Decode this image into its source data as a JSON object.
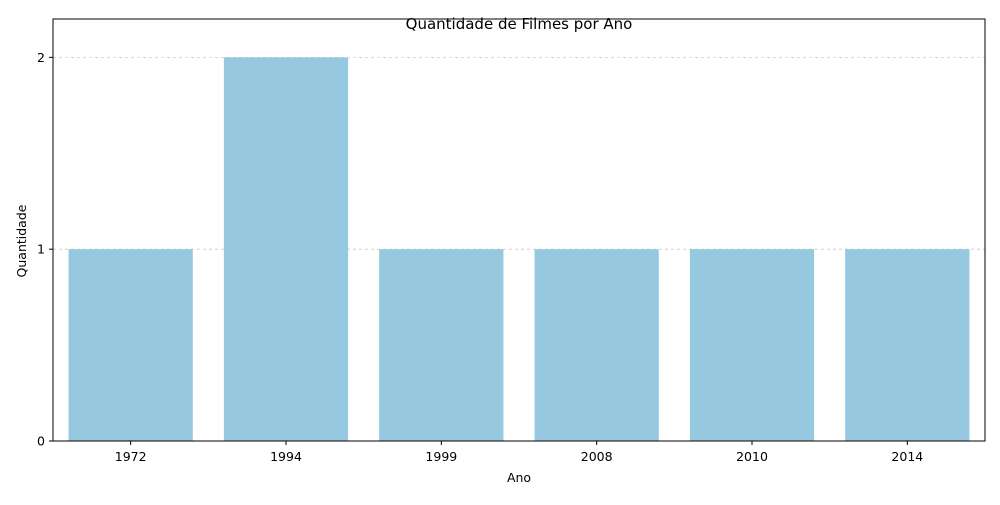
{
  "chart_data": {
    "type": "bar",
    "title": "Quantidade de Filmes por Ano",
    "xlabel": "Ano",
    "ylabel": "Quantidade",
    "categories": [
      "1972",
      "1994",
      "1999",
      "2008",
      "2010",
      "2014"
    ],
    "values": [
      1,
      2,
      1,
      1,
      1,
      1
    ],
    "ylim": [
      0,
      2.2
    ],
    "yticks": [
      "0",
      "1",
      "2"
    ],
    "grid": "y-dashed",
    "bar_color": "#96c9df"
  }
}
